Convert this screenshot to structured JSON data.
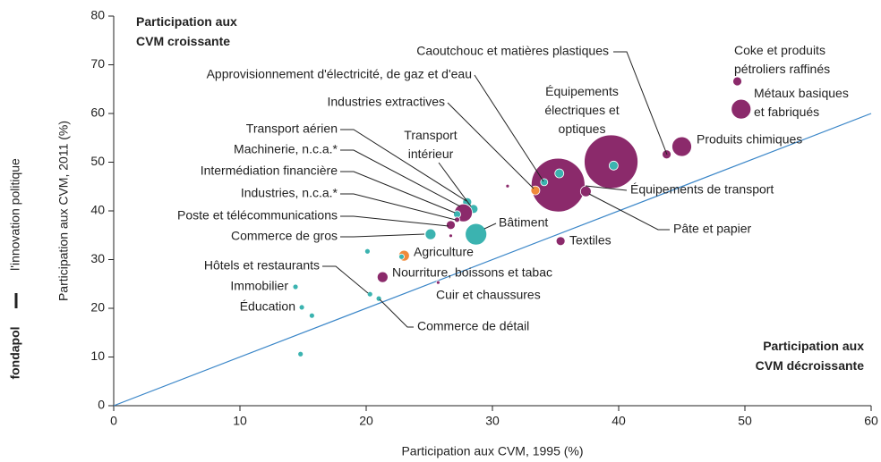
{
  "brand": {
    "name": "fondapol",
    "tagline": "l'innovation politique"
  },
  "chart_data": {
    "type": "scatter",
    "xlabel": "Participation aux CVM, 1995 (%)",
    "ylabel": "Participation aux CVM, 2011 (%)",
    "annotations": [
      [
        "Participation aux",
        "CVM croissante"
      ],
      [
        "Participation aux",
        "CVM décroissante"
      ]
    ],
    "xlim": [
      0,
      60
    ],
    "xticks": [
      0,
      10,
      20,
      30,
      40,
      50,
      60
    ],
    "ylim": [
      0,
      80
    ],
    "yticks": [
      0,
      10,
      20,
      30,
      40,
      50,
      60,
      70,
      80
    ],
    "reference_line_color": "#3a86c8",
    "x": [
      49.4,
      49.7,
      45.0,
      43.8,
      39.4,
      39.6,
      35.2,
      35.3,
      37.4,
      35.4,
      33.4,
      34.1,
      31.2,
      28.7,
      28.5,
      28.0,
      27.7,
      27.2,
      26.7,
      27.2,
      26.7,
      25.1,
      23.0,
      22.8,
      20.1,
      21.3,
      25.7,
      20.3,
      21.0,
      14.4,
      14.9,
      15.7,
      14.8
    ],
    "values": [
      66.6,
      60.9,
      53.2,
      51.6,
      50.1,
      49.3,
      45.3,
      47.7,
      44.0,
      33.8,
      44.2,
      45.9,
      45.1,
      35.2,
      40.4,
      41.8,
      39.6,
      39.3,
      37.1,
      38.2,
      34.9,
      35.2,
      30.8,
      30.6,
      31.7,
      26.4,
      25.3,
      22.9,
      22.0,
      24.4,
      20.2,
      18.5,
      10.6
    ],
    "sizes": [
      5,
      11,
      11,
      5,
      30,
      5,
      30,
      5,
      6,
      5,
      5,
      4,
      2,
      12,
      5,
      5,
      10,
      4,
      5,
      3,
      2,
      6,
      6,
      3,
      3,
      6,
      2,
      3,
      3,
      3,
      3,
      3,
      3
    ],
    "colors": [
      "#8b2a6b",
      "#8b2a6b",
      "#8b2a6b",
      "#8b2a6b",
      "#8b2a6b",
      "#3bb3b0",
      "#8b2a6b",
      "#3bb3b0",
      "#8b2a6b",
      "#8b2a6b",
      "#f08a3a",
      "#3bb3b0",
      "#8b2a6b",
      "#3bb3b0",
      "#3bb3b0",
      "#3bb3b0",
      "#8b2a6b",
      "#3bb3b0",
      "#8b2a6b",
      "#8b2a6b",
      "#8b2a6b",
      "#3bb3b0",
      "#f08a3a",
      "#3bb3b0",
      "#3bb3b0",
      "#8b2a6b",
      "#8b2a6b",
      "#3bb3b0",
      "#3bb3b0",
      "#3bb3b0",
      "#3bb3b0",
      "#3bb3b0",
      "#3bb3b0"
    ],
    "labels": [
      [
        "Coke et produits",
        "pétroliers raffinés"
      ],
      [
        "Métaux basiques",
        "et fabriqués"
      ],
      "Produits chimiques",
      "Caoutchouc et matières plastiques",
      [
        "Équipements",
        "électriques et",
        "optiques"
      ],
      null,
      "Équipements de transport",
      null,
      "Pâte et papier",
      "Textiles",
      "Industries extractives",
      "Approvisionnement d'électricité, de gaz et d'eau",
      null,
      "Bâtiment",
      [
        "Transport",
        "intérieur"
      ],
      "Transport aérien",
      "Machinerie, n.c.a.*",
      "Intermédiation financière",
      "Poste et télécommunications",
      "Industries, n.c.a.*",
      null,
      "Commerce de gros",
      "Agriculture",
      null,
      null,
      "Nourriture, boissons et tabac",
      "Cuir et chaussures",
      "Hôtels et restaurants",
      "Commerce de détail",
      "Immobilier",
      "Éducation",
      null,
      null
    ]
  }
}
